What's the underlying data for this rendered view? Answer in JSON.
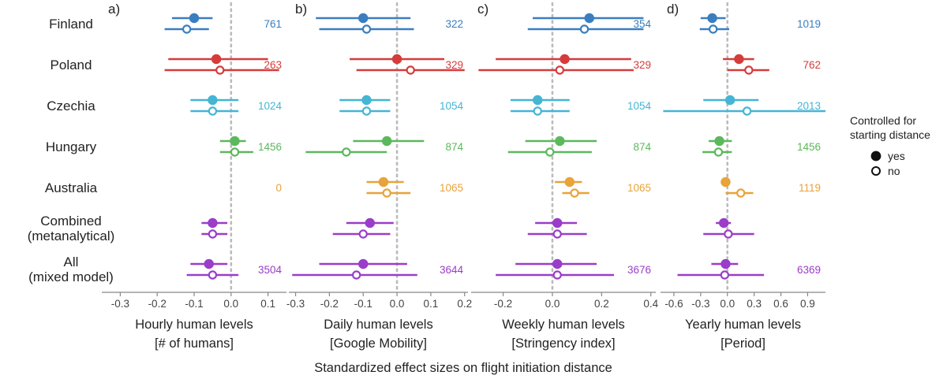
{
  "figure": {
    "x_caption": "Standardized effect sizes on flight initiation distance",
    "legend": {
      "title_line1": "Controlled for",
      "title_line2": "starting distance",
      "items": [
        {
          "label": "yes",
          "marker": "filled"
        },
        {
          "label": "no",
          "marker": "open"
        }
      ],
      "placement": "right"
    }
  },
  "colors": {
    "Finland": "#3a7ebf",
    "Finland_no": "#3a7ebf",
    "Poland": "#d63b3b",
    "Czechia": "#45b5d4",
    "Hungary": "#5cb85c",
    "Australia": "#e8a33a",
    "Combined": "#9b3dc8",
    "All": "#9b3dc8",
    "reference_line": "#bbbbbb",
    "axis": "#888888",
    "text": "#222222"
  },
  "rows": [
    {
      "key": "Finland",
      "line1": "Finland",
      "line2": ""
    },
    {
      "key": "Poland",
      "line1": "Poland",
      "line2": ""
    },
    {
      "key": "Czechia",
      "line1": "Czechia",
      "line2": ""
    },
    {
      "key": "Hungary",
      "line1": "Hungary",
      "line2": ""
    },
    {
      "key": "Australia",
      "line1": "Australia",
      "line2": ""
    },
    {
      "key": "Combined",
      "line1": "Combined",
      "line2": "(metanalytical)"
    },
    {
      "key": "All",
      "line1": "All",
      "line2": "(mixed model)"
    }
  ],
  "chart_data": [
    {
      "type": "scatter",
      "panel": "a)",
      "xlabel_line1": "Hourly human levels",
      "xlabel_line2": "[# of humans]",
      "xlim": [
        -0.35,
        0.15
      ],
      "ticks": [
        -0.3,
        -0.2,
        -0.1,
        0.0,
        0.1
      ],
      "tick_labels": [
        "-0.3",
        "-0.2",
        "-0.1",
        "0.0",
        "0.1"
      ],
      "reference": 0,
      "estimates": [
        {
          "row": "Finland",
          "yes": [
            -0.1,
            -0.16,
            -0.05
          ],
          "no": [
            -0.12,
            -0.18,
            -0.06
          ],
          "n": "761"
        },
        {
          "row": "Poland",
          "yes": [
            -0.04,
            -0.17,
            0.1
          ],
          "no": [
            -0.03,
            -0.18,
            0.13
          ],
          "n": "263"
        },
        {
          "row": "Czechia",
          "yes": [
            -0.05,
            -0.11,
            0.02
          ],
          "no": [
            -0.05,
            -0.11,
            0.02
          ],
          "n": "1024"
        },
        {
          "row": "Hungary",
          "yes": [
            0.01,
            -0.03,
            0.04
          ],
          "no": [
            0.01,
            -0.03,
            0.06
          ],
          "n": "1456"
        },
        {
          "row": "Australia",
          "yes": null,
          "no": null,
          "n": "0"
        },
        {
          "row": "Combined",
          "yes": [
            -0.05,
            -0.08,
            -0.01
          ],
          "no": [
            -0.05,
            -0.08,
            -0.01
          ],
          "n": ""
        },
        {
          "row": "All",
          "yes": [
            -0.06,
            -0.11,
            -0.01
          ],
          "no": [
            -0.05,
            -0.12,
            0.02
          ],
          "n": "3504"
        }
      ]
    },
    {
      "type": "scatter",
      "panel": "b)",
      "xlabel_line1": "Daily human levels",
      "xlabel_line2": "[Google Mobility]",
      "xlim": [
        -0.32,
        0.21
      ],
      "ticks": [
        -0.3,
        -0.2,
        -0.1,
        0.0,
        0.1,
        0.2
      ],
      "tick_labels": [
        "-0.3",
        "-0.2",
        "-0.1",
        "0.0",
        "0.1",
        "0.2"
      ],
      "reference": 0,
      "estimates": [
        {
          "row": "Finland",
          "yes": [
            -0.1,
            -0.24,
            0.04
          ],
          "no": [
            -0.09,
            -0.23,
            0.05
          ],
          "n": "322"
        },
        {
          "row": "Poland",
          "yes": [
            0.0,
            -0.14,
            0.14
          ],
          "no": [
            0.04,
            -0.12,
            0.2
          ],
          "n": "329"
        },
        {
          "row": "Czechia",
          "yes": [
            -0.09,
            -0.17,
            -0.02
          ],
          "no": [
            -0.09,
            -0.17,
            -0.02
          ],
          "n": "1054"
        },
        {
          "row": "Hungary",
          "yes": [
            -0.03,
            -0.13,
            0.08
          ],
          "no": [
            -0.15,
            -0.27,
            -0.03
          ],
          "n": "874"
        },
        {
          "row": "Australia",
          "yes": [
            -0.04,
            -0.09,
            0.02
          ],
          "no": [
            -0.03,
            -0.09,
            0.04
          ],
          "n": "1065"
        },
        {
          "row": "Combined",
          "yes": [
            -0.08,
            -0.15,
            -0.01
          ],
          "no": [
            -0.1,
            -0.19,
            -0.02
          ],
          "n": ""
        },
        {
          "row": "All",
          "yes": [
            -0.1,
            -0.23,
            0.03
          ],
          "no": [
            -0.12,
            -0.31,
            0.06
          ],
          "n": "3644"
        }
      ]
    },
    {
      "type": "scatter",
      "panel": "c)",
      "xlabel_line1": "Weekly human levels",
      "xlabel_line2": "[Stringency index]",
      "xlim": [
        -0.33,
        0.42
      ],
      "ticks": [
        -0.2,
        0.0,
        0.2,
        0.4
      ],
      "tick_labels": [
        "-0.2",
        "0.0",
        "0.2",
        "0.4"
      ],
      "reference": 0,
      "estimates": [
        {
          "row": "Finland",
          "yes": [
            0.15,
            -0.08,
            0.37
          ],
          "no": [
            0.13,
            -0.1,
            0.37
          ],
          "n": "354"
        },
        {
          "row": "Poland",
          "yes": [
            0.05,
            -0.23,
            0.32
          ],
          "no": [
            0.03,
            -0.3,
            0.33
          ],
          "n": "329"
        },
        {
          "row": "Czechia",
          "yes": [
            -0.06,
            -0.17,
            0.07
          ],
          "no": [
            -0.06,
            -0.17,
            0.07
          ],
          "n": "1054"
        },
        {
          "row": "Hungary",
          "yes": [
            0.03,
            -0.11,
            0.18
          ],
          "no": [
            -0.01,
            -0.18,
            0.16
          ],
          "n": "874"
        },
        {
          "row": "Australia",
          "yes": [
            0.07,
            0.01,
            0.12
          ],
          "no": [
            0.09,
            0.04,
            0.15
          ],
          "n": "1065"
        },
        {
          "row": "Combined",
          "yes": [
            0.02,
            -0.07,
            0.1
          ],
          "no": [
            0.02,
            -0.1,
            0.14
          ],
          "n": ""
        },
        {
          "row": "All",
          "yes": [
            0.02,
            -0.15,
            0.18
          ],
          "no": [
            0.02,
            -0.23,
            0.25
          ],
          "n": "3676"
        }
      ]
    },
    {
      "type": "scatter",
      "panel": "d)",
      "xlabel_line1": "Yearly human levels",
      "xlabel_line2": "[Period]",
      "xlim": [
        -0.75,
        1.1
      ],
      "ticks": [
        -0.6,
        -0.3,
        0.0,
        0.3,
        0.6,
        0.9
      ],
      "tick_labels": [
        "-0.6",
        "-0.3",
        "0.0",
        "0.3",
        "0.6",
        "0.9"
      ],
      "reference": 0,
      "estimates": [
        {
          "row": "Finland",
          "yes": [
            -0.17,
            -0.3,
            -0.02
          ],
          "no": [
            -0.16,
            -0.31,
            0.02
          ],
          "n": "1019"
        },
        {
          "row": "Poland",
          "yes": [
            0.13,
            -0.05,
            0.3
          ],
          "no": [
            0.24,
            0.0,
            0.47
          ],
          "n": "762"
        },
        {
          "row": "Czechia",
          "yes": [
            0.03,
            -0.27,
            0.35
          ],
          "no": [
            0.22,
            -0.72,
            1.1
          ],
          "n": "2013"
        },
        {
          "row": "Hungary",
          "yes": [
            -0.09,
            -0.21,
            0.05
          ],
          "no": [
            -0.1,
            -0.28,
            0.05
          ],
          "n": "1456"
        },
        {
          "row": "Australia",
          "yes": [
            -0.02,
            -0.06,
            0.02
          ],
          "no": [
            0.15,
            -0.02,
            0.29
          ],
          "n": "1119"
        },
        {
          "row": "Combined",
          "yes": [
            -0.04,
            -0.13,
            0.04
          ],
          "no": [
            0.01,
            -0.27,
            0.3
          ],
          "n": ""
        },
        {
          "row": "All",
          "yes": [
            -0.02,
            -0.18,
            0.12
          ],
          "no": [
            -0.03,
            -0.56,
            0.41
          ],
          "n": "6369"
        }
      ]
    }
  ]
}
